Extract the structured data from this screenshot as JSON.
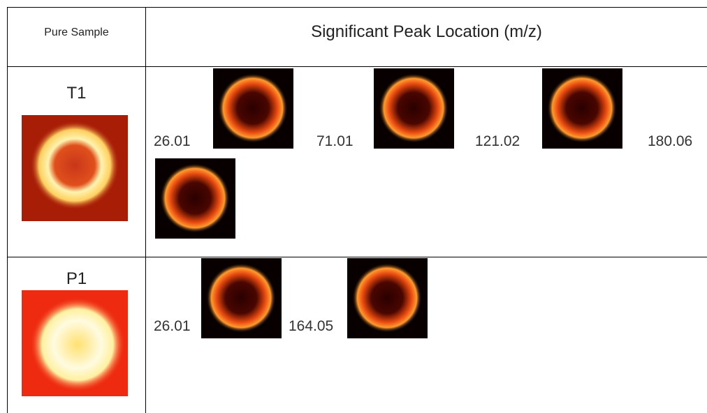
{
  "table": {
    "header": [
      "Pure Sample",
      "Significant Peak Location (m/z)"
    ],
    "rows": [
      {
        "sample": "T1",
        "peaks": [
          "26.01",
          "71.01",
          "121.02",
          "180.06"
        ]
      },
      {
        "sample": "P1",
        "peaks": [
          "26.01",
          "164.05"
        ]
      }
    ]
  }
}
